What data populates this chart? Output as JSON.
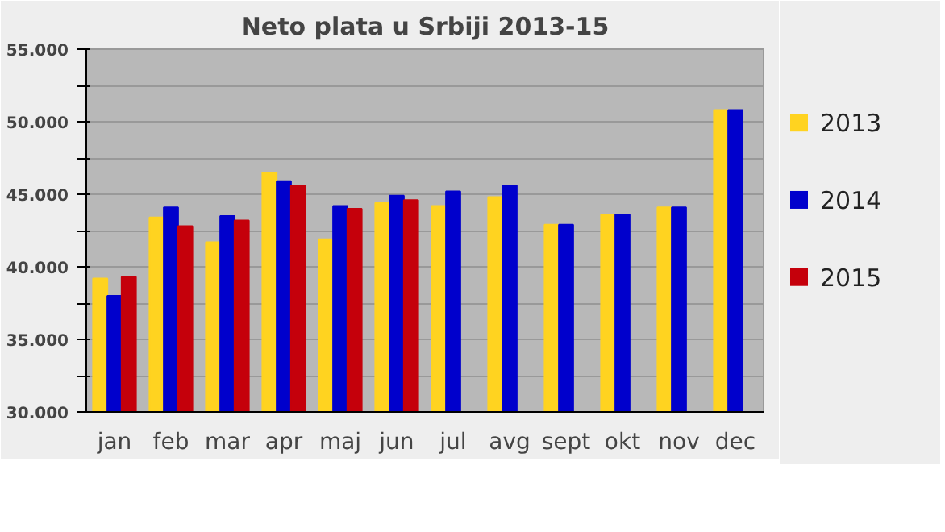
{
  "chart_data": {
    "type": "bar",
    "title": "Neto plata u Srbiji 2013-15",
    "categories": [
      "jan",
      "feb",
      "mar",
      "apr",
      "maj",
      "jun",
      "jul",
      "avg",
      "sept",
      "okt",
      "nov",
      "dec"
    ],
    "series": [
      {
        "name": "2013",
        "color": "#ffd320",
        "values": [
          39200,
          43400,
          41700,
          46500,
          41900,
          44400,
          44200,
          44800,
          42900,
          43600,
          44100,
          50800
        ]
      },
      {
        "name": "2014",
        "color": "#0000cc",
        "values": [
          38000,
          44100,
          43500,
          45900,
          44200,
          44900,
          45200,
          45600,
          42900,
          43600,
          44100,
          50800
        ]
      },
      {
        "name": "2015",
        "color": "#c5000b",
        "values": [
          39300,
          42800,
          43200,
          45600,
          44000,
          44600,
          null,
          null,
          null,
          null,
          null,
          null
        ]
      }
    ],
    "ylim": [
      30000,
      55000
    ],
    "yticks": [
      {
        "value": 30000,
        "label": "30.000"
      },
      {
        "value": 32500,
        "label": null
      },
      {
        "value": 35000,
        "label": "35.000"
      },
      {
        "value": 37500,
        "label": null
      },
      {
        "value": 40000,
        "label": "40.000"
      },
      {
        "value": 42500,
        "label": null
      },
      {
        "value": 45000,
        "label": "45.000"
      },
      {
        "value": 47500,
        "label": null
      },
      {
        "value": 50000,
        "label": "50.000"
      },
      {
        "value": 52500,
        "label": null
      },
      {
        "value": 55000,
        "label": "55.000"
      }
    ],
    "grid": "y",
    "legend": "right"
  }
}
